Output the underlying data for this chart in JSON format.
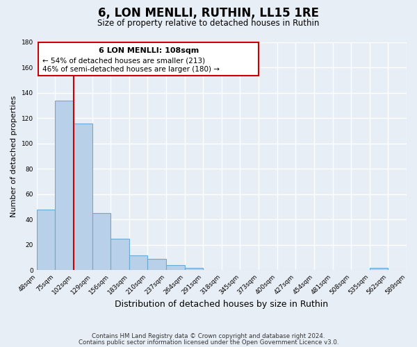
{
  "title": "6, LON MENLLI, RUTHIN, LL15 1RE",
  "subtitle": "Size of property relative to detached houses in Ruthin",
  "bar_heights": [
    48,
    134,
    116,
    45,
    25,
    12,
    9,
    4,
    2,
    0,
    0,
    0,
    0,
    0,
    0,
    0,
    0,
    0,
    2,
    0
  ],
  "bar_labels": [
    "48sqm",
    "75sqm",
    "102sqm",
    "129sqm",
    "156sqm",
    "183sqm",
    "210sqm",
    "237sqm",
    "264sqm",
    "291sqm",
    "318sqm",
    "345sqm",
    "373sqm",
    "400sqm",
    "427sqm",
    "454sqm",
    "481sqm",
    "508sqm",
    "535sqm",
    "562sqm",
    "589sqm"
  ],
  "bar_color": "#b8d0e8",
  "bar_edge_color": "#6aaad4",
  "bar_width": 1.0,
  "red_line_x": 2,
  "ylabel": "Number of detached properties",
  "xlabel": "Distribution of detached houses by size in Ruthin",
  "ylim": [
    0,
    180
  ],
  "yticks": [
    0,
    20,
    40,
    60,
    80,
    100,
    120,
    140,
    160,
    180
  ],
  "annotation_title": "6 LON MENLLI: 108sqm",
  "annotation_line1": "← 54% of detached houses are smaller (213)",
  "annotation_line2": "46% of semi-detached houses are larger (180) →",
  "annotation_box_color": "#ffffff",
  "annotation_box_edge": "#cc0000",
  "bg_color": "#e8eef5",
  "grid_color": "#ffffff",
  "footer1": "Contains HM Land Registry data © Crown copyright and database right 2024.",
  "footer2": "Contains public sector information licensed under the Open Government Licence v3.0."
}
